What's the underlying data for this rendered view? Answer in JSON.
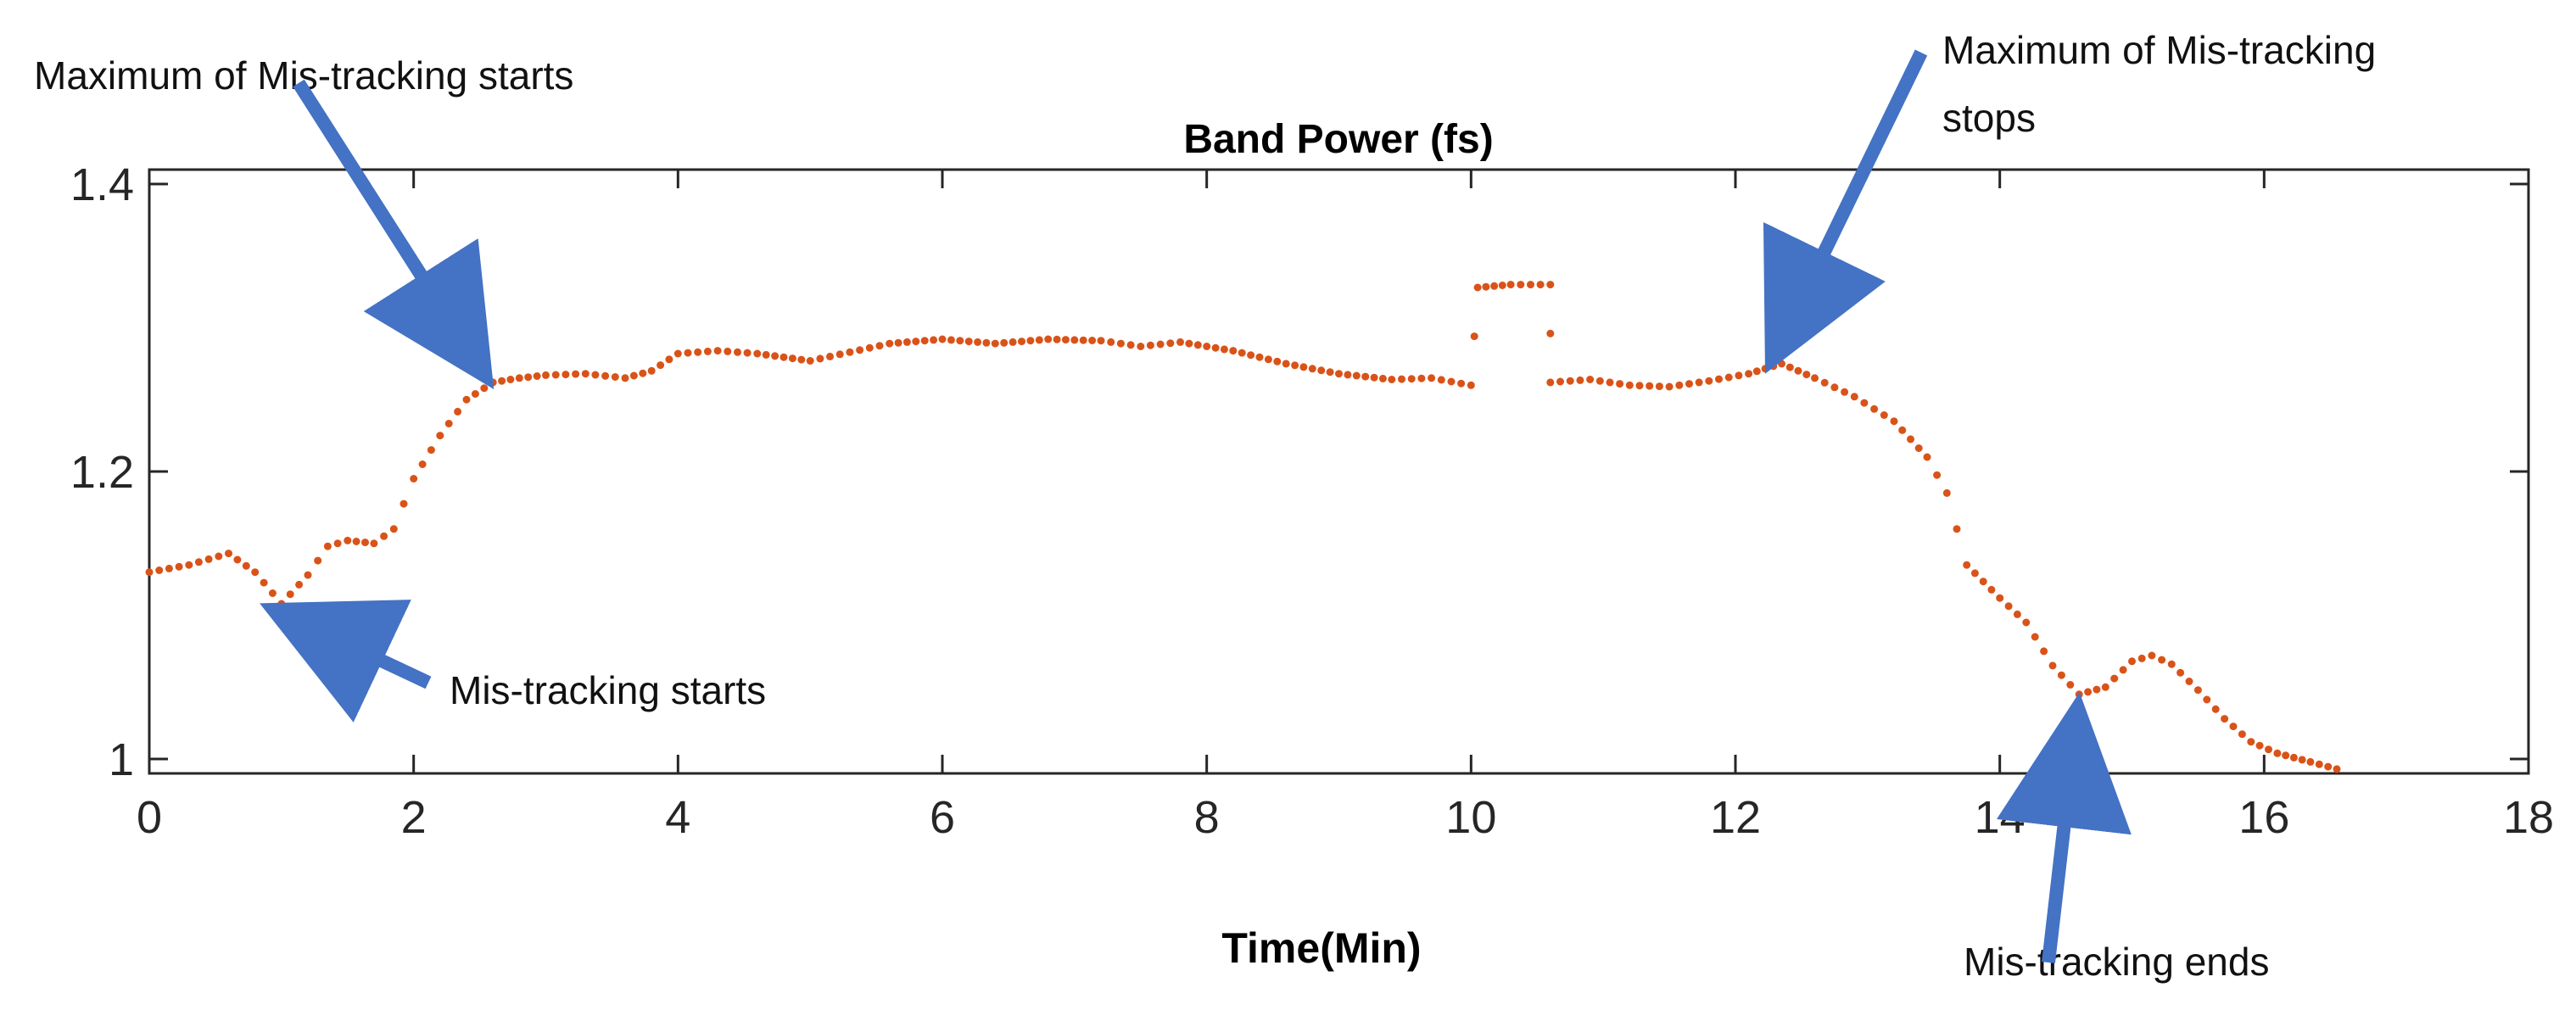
{
  "chart_data": {
    "type": "scatter",
    "title": "Band Power (fs)",
    "xlabel": "Time(Min)",
    "ylabel": "",
    "xlim": [
      0,
      18
    ],
    "ylim": [
      0.99,
      1.41
    ],
    "xticks": [
      0,
      2,
      4,
      6,
      8,
      10,
      12,
      14,
      16,
      18
    ],
    "yticks": [
      1,
      1.2,
      1.4
    ],
    "xtick_labels": [
      "0",
      "2",
      "4",
      "6",
      "8",
      "10",
      "12",
      "14",
      "16",
      "18"
    ],
    "ytick_labels": [
      "1",
      "1.2",
      "1.4"
    ],
    "series_color": "#D95319",
    "annotation_color": "#4472C4",
    "grid": false,
    "series": [
      {
        "name": "",
        "points": [
          [
            0.0,
            1.13
          ],
          [
            0.3,
            1.135
          ],
          [
            0.6,
            1.143
          ],
          [
            0.8,
            1.13
          ],
          [
            1.0,
            1.108
          ],
          [
            1.2,
            1.128
          ],
          [
            1.35,
            1.148
          ],
          [
            1.5,
            1.152
          ],
          [
            1.7,
            1.15
          ],
          [
            1.85,
            1.16
          ],
          [
            2.0,
            1.195
          ],
          [
            2.2,
            1.225
          ],
          [
            2.4,
            1.25
          ],
          [
            2.6,
            1.262
          ],
          [
            2.8,
            1.265
          ],
          [
            3.0,
            1.267
          ],
          [
            3.3,
            1.268
          ],
          [
            3.6,
            1.265
          ],
          [
            3.8,
            1.27
          ],
          [
            4.0,
            1.282
          ],
          [
            4.3,
            1.284
          ],
          [
            4.6,
            1.282
          ],
          [
            5.0,
            1.277
          ],
          [
            5.3,
            1.283
          ],
          [
            5.6,
            1.289
          ],
          [
            6.0,
            1.292
          ],
          [
            6.4,
            1.289
          ],
          [
            6.8,
            1.292
          ],
          [
            7.2,
            1.291
          ],
          [
            7.5,
            1.287
          ],
          [
            7.8,
            1.29
          ],
          [
            8.2,
            1.284
          ],
          [
            8.6,
            1.275
          ],
          [
            9.0,
            1.268
          ],
          [
            9.4,
            1.264
          ],
          [
            9.7,
            1.265
          ],
          [
            10.0,
            1.26
          ],
          [
            10.05,
            1.328
          ],
          [
            10.3,
            1.33
          ],
          [
            10.6,
            1.33
          ],
          [
            10.6,
            1.262
          ],
          [
            10.9,
            1.264
          ],
          [
            11.2,
            1.26
          ],
          [
            11.5,
            1.259
          ],
          [
            11.8,
            1.263
          ],
          [
            12.1,
            1.268
          ],
          [
            12.35,
            1.275
          ],
          [
            12.6,
            1.265
          ],
          [
            12.9,
            1.252
          ],
          [
            13.2,
            1.235
          ],
          [
            13.45,
            1.21
          ],
          [
            13.6,
            1.185
          ],
          [
            13.75,
            1.135
          ],
          [
            14.0,
            1.112
          ],
          [
            14.2,
            1.095
          ],
          [
            14.4,
            1.065
          ],
          [
            14.6,
            1.045
          ],
          [
            14.8,
            1.05
          ],
          [
            15.0,
            1.068
          ],
          [
            15.15,
            1.072
          ],
          [
            15.3,
            1.066
          ],
          [
            15.5,
            1.048
          ],
          [
            15.7,
            1.028
          ],
          [
            15.9,
            1.012
          ],
          [
            16.1,
            1.004
          ],
          [
            16.35,
            0.998
          ],
          [
            16.55,
            0.993
          ]
        ]
      }
    ],
    "annotations": [
      {
        "text": "Maximum of Mis-tracking starts",
        "x": 2.6,
        "y": 1.262
      },
      {
        "text": "Mis-tracking starts",
        "x": 1.0,
        "y": 1.108
      },
      {
        "text": "Maximum of Mis-tracking",
        "x": 12.35,
        "y": 1.275
      },
      {
        "text": "stops",
        "x": 12.35,
        "y": 1.275
      },
      {
        "text": "Mis-tracking ends",
        "x": 14.75,
        "y": 1.045
      }
    ]
  }
}
